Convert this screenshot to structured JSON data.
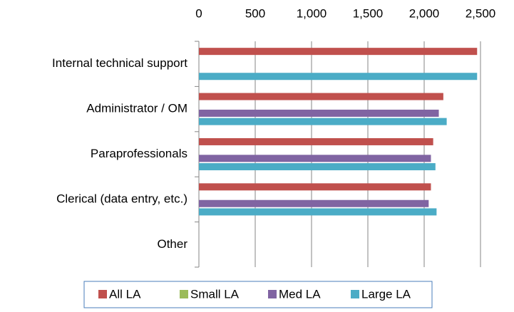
{
  "chart_data": {
    "type": "barh",
    "categories": [
      "Internal technical support",
      "Administrator / OM",
      "Paraprofessionals",
      "Clerical (data entry, etc.)",
      "Other"
    ],
    "series": [
      {
        "name": "All LA",
        "color": "#c0504d",
        "values": [
          2470,
          2170,
          2080,
          2060,
          null
        ]
      },
      {
        "name": "Small LA",
        "color": "#9bbb59",
        "values": [
          null,
          null,
          null,
          null,
          null
        ]
      },
      {
        "name": "Med LA",
        "color": "#8064a2",
        "values": [
          null,
          2130,
          2060,
          2040,
          null
        ]
      },
      {
        "name": "Large LA",
        "color": "#4bacc6",
        "values": [
          2470,
          2200,
          2100,
          2110,
          null
        ]
      }
    ],
    "xlim": [
      0,
      2500
    ],
    "xticks": [
      0,
      500,
      {
        "value": 1000,
        "label": "1,000"
      },
      {
        "value": 1500,
        "label": "1,500"
      },
      {
        "value": 2000,
        "label": "2,000"
      },
      {
        "value": 2500,
        "label": "2,500"
      }
    ],
    "grid": true,
    "legend": "bottom"
  }
}
